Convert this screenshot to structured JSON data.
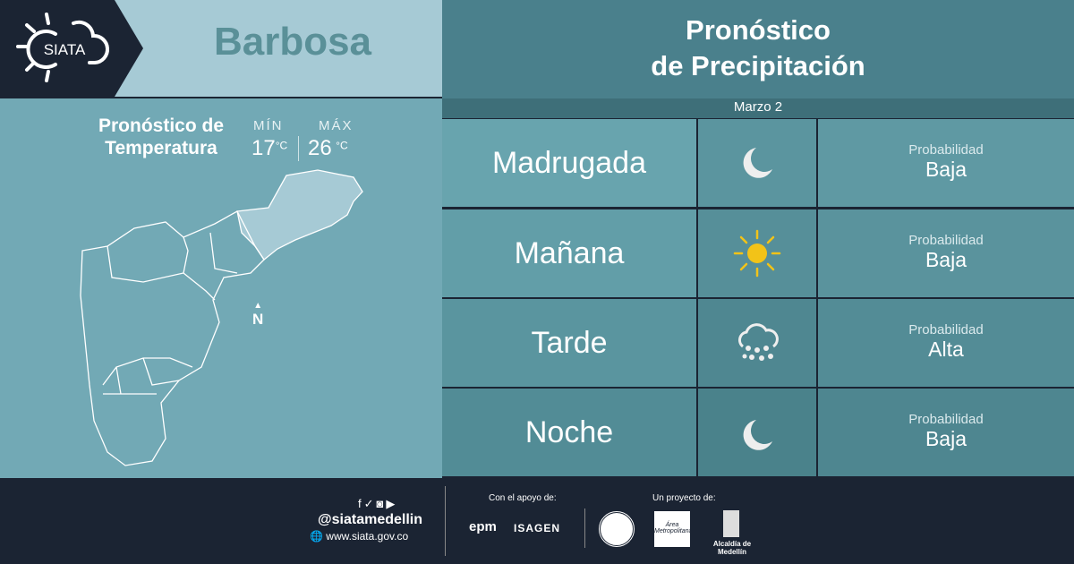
{
  "logo": {
    "text": "SIATA"
  },
  "city": "Barbosa",
  "temperature": {
    "title_line1": "Pronóstico de",
    "title_line2": "Temperatura",
    "min_label": "MÍN",
    "max_label": "MÁX",
    "min": "17",
    "max": "26",
    "unit": "°C"
  },
  "map": {
    "north_label": "N"
  },
  "precipitation": {
    "title_line1": "Pronóstico",
    "title_line2": "de Precipitación",
    "date": "Marzo 2",
    "periods": [
      {
        "name": "Madrugada",
        "icon": "moon-icon",
        "prob_label": "Probabilidad",
        "prob": "Baja"
      },
      {
        "name": "Mañana",
        "icon": "sun-icon",
        "prob_label": "Probabilidad",
        "prob": "Baja"
      },
      {
        "name": "Tarde",
        "icon": "rain-cloud-icon",
        "prob_label": "Probabilidad",
        "prob": "Alta"
      },
      {
        "name": "Noche",
        "icon": "moon-icon",
        "prob_label": "Probabilidad",
        "prob": "Baja"
      }
    ]
  },
  "footer": {
    "handle": "@siatamedellin",
    "website": "www.siata.gov.co",
    "support_label": "Con el apoyo de:",
    "support": [
      "epm",
      "ISAGEN"
    ],
    "project_label": "Un proyecto de:",
    "project": [
      "Área Metropolitana",
      "Alcaldía de Medellín"
    ]
  },
  "colors": {
    "dark": "#1b2433",
    "accent_sun": "#f2c318"
  }
}
